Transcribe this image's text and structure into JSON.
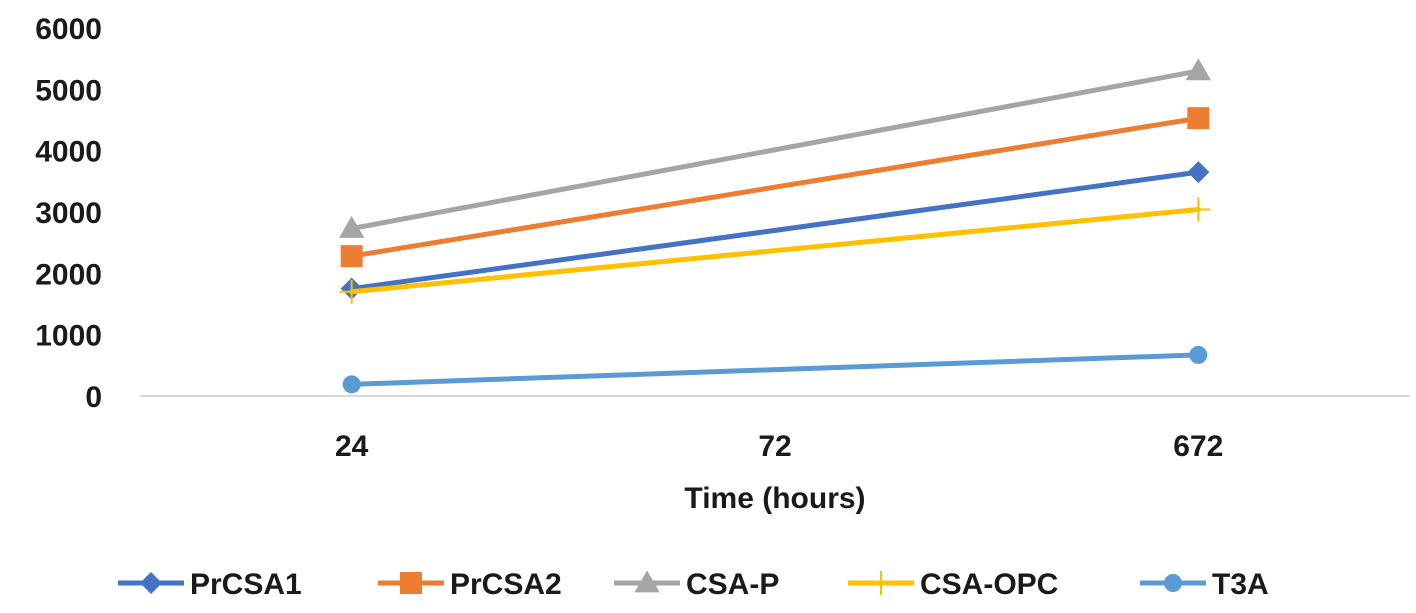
{
  "chart_data": {
    "type": "line",
    "title": "",
    "xlabel": "Time (hours)",
    "ylabel": "",
    "categories": [
      "24",
      "72",
      "672"
    ],
    "ylim": [
      0,
      6000
    ],
    "yticks": [
      "0",
      "1000",
      "2000",
      "3000",
      "4000",
      "5000",
      "6000"
    ],
    "grid": false,
    "legend_position": "bottom",
    "series": [
      {
        "name": "PrCSA1",
        "color": "#4472C4",
        "marker": "diamond",
        "values": [
          1750,
          null,
          3650
        ]
      },
      {
        "name": "PrCSA2",
        "color": "#ED7D31",
        "marker": "square",
        "values": [
          2280,
          null,
          4530
        ]
      },
      {
        "name": "CSA-P",
        "color": "#A5A5A5",
        "marker": "triangle",
        "values": [
          2730,
          null,
          5300
        ]
      },
      {
        "name": "CSA-OPC",
        "color": "#FFC000",
        "marker": "plus",
        "values": [
          1700,
          null,
          3040
        ]
      },
      {
        "name": "T3A",
        "color": "#5B9BD5",
        "marker": "circle",
        "values": [
          190,
          null,
          670
        ]
      }
    ]
  }
}
